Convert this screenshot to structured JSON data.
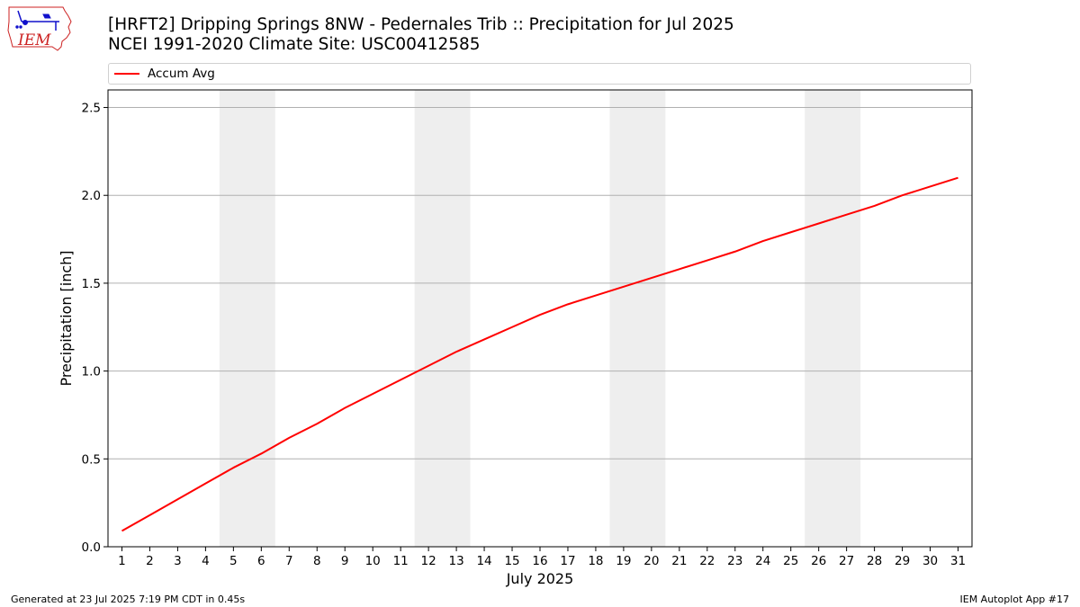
{
  "header": {
    "title_line1": "[HRFT2] Dripping Springs 8NW - Pedernales Trib :: Precipitation for Jul 2025",
    "title_line2": "NCEI 1991-2020 Climate Site: USC00412585",
    "logo_text": "IEM"
  },
  "footer": {
    "left": "Generated at 23 Jul 2025 7:19 PM CDT in 0.45s",
    "right": "IEM Autoplot App #17"
  },
  "colors": {
    "series_line": "#ff0000",
    "weekend_band": "#eeeeee",
    "grid": "#b0b0b0",
    "logo_red": "#cc2222",
    "logo_blue": "#1111cc"
  },
  "chart_data": {
    "type": "line",
    "xlabel": "July 2025",
    "ylabel": "Precipitation [inch]",
    "ylim": [
      0,
      2.6
    ],
    "xlim": [
      0.5,
      31.5
    ],
    "y_ticks": [
      "0.0",
      "0.5",
      "1.0",
      "1.5",
      "2.0",
      "2.5"
    ],
    "x_ticks": [
      "1",
      "2",
      "3",
      "4",
      "5",
      "6",
      "7",
      "8",
      "9",
      "10",
      "11",
      "12",
      "13",
      "14",
      "15",
      "16",
      "17",
      "18",
      "19",
      "20",
      "21",
      "22",
      "23",
      "24",
      "25",
      "26",
      "27",
      "28",
      "29",
      "30",
      "31"
    ],
    "grid": "horizontal",
    "legend_position": "top",
    "weekend_shading": [
      [
        5,
        6
      ],
      [
        12,
        13
      ],
      [
        19,
        20
      ],
      [
        26,
        27
      ]
    ],
    "series": [
      {
        "name": "Accum Avg",
        "x": [
          1,
          2,
          3,
          4,
          5,
          6,
          7,
          8,
          9,
          10,
          11,
          12,
          13,
          14,
          15,
          16,
          17,
          18,
          19,
          20,
          21,
          22,
          23,
          24,
          25,
          26,
          27,
          28,
          29,
          30,
          31
        ],
        "values": [
          0.09,
          0.18,
          0.27,
          0.36,
          0.45,
          0.53,
          0.62,
          0.7,
          0.79,
          0.87,
          0.95,
          1.03,
          1.11,
          1.18,
          1.25,
          1.32,
          1.38,
          1.43,
          1.48,
          1.53,
          1.58,
          1.63,
          1.68,
          1.74,
          1.79,
          1.84,
          1.89,
          1.94,
          2.0,
          2.05,
          2.1
        ]
      }
    ]
  }
}
